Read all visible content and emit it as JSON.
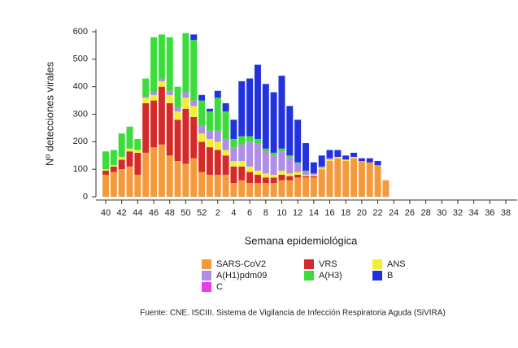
{
  "chart_data": {
    "type": "stacked_bar",
    "y_label": "Nº detecciones virales",
    "x_label": "Semana epidemiológica",
    "footnote": "Fuente: CNE. ISCIII. Sistema de Vigilancia de Infección Respiratoria Aguda (SiVIRA)",
    "categories": [
      "40",
      null,
      "42",
      null,
      "44",
      null,
      "46",
      null,
      "48",
      null,
      "50",
      null,
      "52",
      null,
      "2",
      null,
      "4",
      null,
      "6",
      null,
      "8",
      null,
      "10",
      null,
      "12",
      null,
      "14",
      null,
      "16",
      null,
      "18",
      null,
      "20",
      null,
      "22",
      null,
      "24",
      null,
      "26",
      null,
      "28",
      null,
      "30",
      null,
      "32",
      null,
      "34",
      null,
      "36",
      null,
      "38",
      null
    ],
    "ylim": [
      0,
      600
    ],
    "yticks": [
      0,
      100,
      200,
      300,
      400,
      500,
      600
    ],
    "series": [
      {
        "name": "SARS-CoV2",
        "color": "#f59a3c",
        "values": [
          80,
          90,
          100,
          110,
          80,
          160,
          180,
          190,
          150,
          130,
          120,
          140,
          90,
          80,
          80,
          80,
          50,
          60,
          50,
          50,
          50,
          50,
          60,
          60,
          70,
          70,
          70,
          100,
          130,
          140,
          130,
          140,
          130,
          125,
          115,
          60,
          null,
          null,
          null,
          null,
          null,
          null,
          null,
          null,
          null,
          null,
          null,
          null,
          null,
          null,
          null,
          null
        ]
      },
      {
        "name": "VRS",
        "color": "#d42a2a",
        "values": [
          15,
          20,
          35,
          55,
          80,
          180,
          170,
          210,
          190,
          150,
          200,
          150,
          110,
          100,
          90,
          70,
          60,
          50,
          40,
          30,
          20,
          20,
          20,
          15,
          10,
          5,
          5,
          0,
          0,
          0,
          0,
          0,
          0,
          0,
          0,
          0,
          null,
          null,
          null,
          null,
          null,
          null,
          null,
          null,
          null,
          null,
          null,
          null,
          null,
          null,
          null,
          null
        ]
      },
      {
        "name": "ANS",
        "color": "#f2ee32",
        "values": [
          5,
          5,
          10,
          10,
          10,
          20,
          20,
          20,
          30,
          30,
          40,
          40,
          30,
          30,
          30,
          20,
          20,
          20,
          20,
          15,
          15,
          10,
          15,
          10,
          10,
          5,
          5,
          5,
          5,
          5,
          5,
          5,
          0,
          0,
          0,
          0,
          null,
          null,
          null,
          null,
          null,
          null,
          null,
          null,
          null,
          null,
          null,
          null,
          null,
          null,
          null,
          null
        ]
      },
      {
        "name": "A(H1)pdm09",
        "color": "#b08ee8",
        "values": [
          0,
          0,
          0,
          0,
          0,
          5,
          10,
          10,
          15,
          15,
          20,
          20,
          30,
          30,
          40,
          40,
          50,
          60,
          90,
          100,
          80,
          70,
          70,
          60,
          30,
          10,
          5,
          5,
          5,
          0,
          0,
          0,
          0,
          0,
          0,
          0,
          null,
          null,
          null,
          null,
          null,
          null,
          null,
          null,
          null,
          null,
          null,
          null,
          null,
          null,
          null,
          null
        ]
      },
      {
        "name": "A(H3)",
        "color": "#3ddc3d",
        "values": [
          65,
          55,
          85,
          80,
          40,
          65,
          200,
          160,
          195,
          75,
          215,
          220,
          90,
          70,
          120,
          100,
          30,
          30,
          20,
          15,
          10,
          10,
          10,
          5,
          5,
          5,
          0,
          0,
          0,
          0,
          0,
          0,
          0,
          0,
          0,
          0,
          null,
          null,
          null,
          null,
          null,
          null,
          null,
          null,
          null,
          null,
          null,
          null,
          null,
          null,
          null,
          null
        ]
      },
      {
        "name": "B",
        "color": "#2233dd",
        "values": [
          0,
          0,
          0,
          0,
          0,
          0,
          0,
          0,
          0,
          0,
          0,
          20,
          20,
          10,
          25,
          30,
          70,
          200,
          210,
          270,
          235,
          220,
          265,
          180,
          155,
          100,
          40,
          40,
          30,
          25,
          15,
          15,
          10,
          15,
          15,
          0,
          null,
          null,
          null,
          null,
          null,
          null,
          null,
          null,
          null,
          null,
          null,
          null,
          null,
          null,
          null,
          null
        ]
      },
      {
        "name": "C",
        "color": "#e83ee8",
        "values": [
          0,
          0,
          0,
          0,
          0,
          0,
          0,
          0,
          0,
          0,
          0,
          0,
          0,
          0,
          0,
          0,
          0,
          0,
          0,
          0,
          0,
          0,
          0,
          0,
          0,
          0,
          0,
          0,
          0,
          0,
          0,
          0,
          0,
          0,
          0,
          0,
          null,
          null,
          null,
          null,
          null,
          null,
          null,
          null,
          null,
          null,
          null,
          null,
          null,
          null,
          null,
          null
        ]
      }
    ]
  }
}
